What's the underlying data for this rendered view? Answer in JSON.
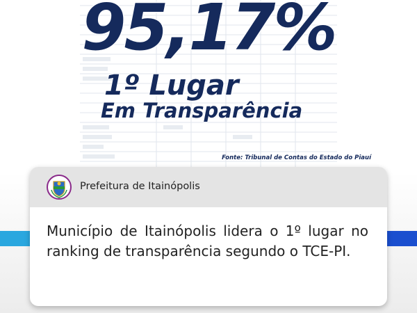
{
  "header": {
    "percentage": "95,17%",
    "rank": "1º Lugar",
    "subtitle": "Em Transparência",
    "source": "Fonte: Tribunal de Contas do Estado do Piauí"
  },
  "card": {
    "title": "Prefeitura de Itainópolis",
    "body": "Município de Itainópolis lidera o 1º lugar no ranking de transparência segundo o TCE-PI."
  }
}
